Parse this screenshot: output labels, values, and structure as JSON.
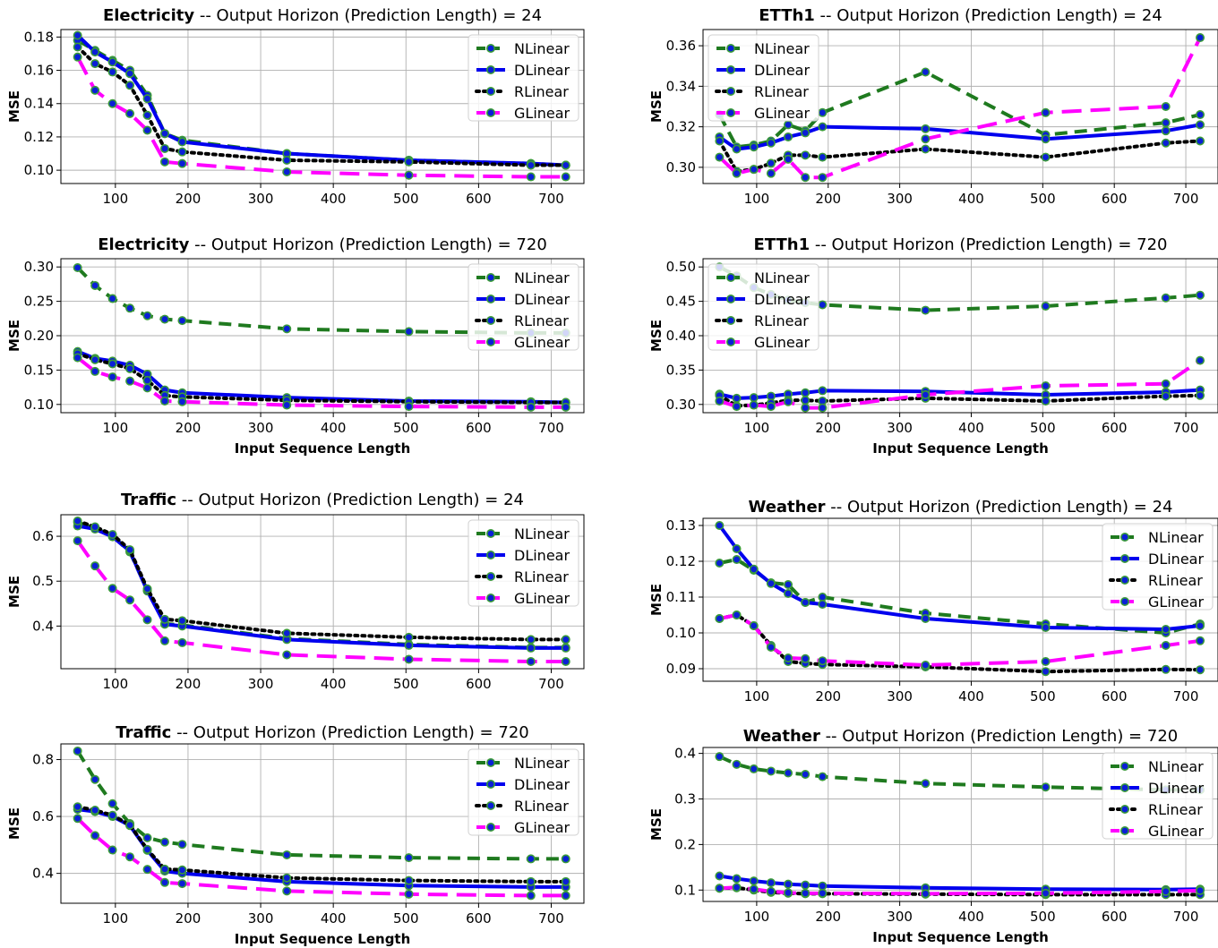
{
  "chart_data": [
    {
      "type": "line",
      "title_bold": "Electricity",
      "title_rest": " -- Output Horizon (Prediction Length) = 24",
      "xlabel": "",
      "ylabel": "MSE",
      "xlim": [
        25,
        745
      ],
      "ylim": [
        0.092,
        0.1845
      ],
      "xticks": [
        100,
        200,
        300,
        400,
        500,
        600,
        700
      ],
      "yticks": [
        0.1,
        0.12,
        0.14,
        0.16,
        0.18
      ],
      "ytick_labels": [
        "0.10",
        "0.12",
        "0.14",
        "0.16",
        "0.18"
      ],
      "grid": true,
      "legend_position": "top-right",
      "x": [
        48,
        72,
        96,
        120,
        144,
        168,
        192,
        336,
        504,
        672,
        720
      ],
      "series": [
        {
          "name": "NLinear",
          "values": [
            0.178,
            0.172,
            0.166,
            0.16,
            0.145,
            0.122,
            0.118,
            0.11,
            0.106,
            0.104,
            0.103
          ]
        },
        {
          "name": "DLinear",
          "values": [
            0.181,
            0.171,
            0.165,
            0.158,
            0.143,
            0.122,
            0.117,
            0.11,
            0.106,
            0.104,
            0.103
          ]
        },
        {
          "name": "RLinear",
          "values": [
            0.174,
            0.164,
            0.159,
            0.151,
            0.133,
            0.113,
            0.111,
            0.106,
            0.105,
            0.103,
            0.103
          ]
        },
        {
          "name": "GLinear",
          "values": [
            0.168,
            0.148,
            0.14,
            0.134,
            0.124,
            0.105,
            0.104,
            0.099,
            0.097,
            0.096,
            0.096
          ]
        }
      ]
    },
    {
      "type": "line",
      "title_bold": "ETTh1",
      "title_rest": " -- Output Horizon (Prediction Length) = 24",
      "xlabel": "",
      "ylabel": "MSE",
      "xlim": [
        25,
        745
      ],
      "ylim": [
        0.292,
        0.368
      ],
      "xticks": [
        100,
        200,
        300,
        400,
        500,
        600,
        700
      ],
      "yticks": [
        0.3,
        0.32,
        0.34,
        0.36
      ],
      "ytick_labels": [
        "0.30",
        "0.32",
        "0.34",
        "0.36"
      ],
      "grid": true,
      "legend_position": "top-left",
      "x": [
        48,
        72,
        96,
        120,
        144,
        168,
        192,
        336,
        504,
        672,
        720
      ],
      "series": [
        {
          "name": "NLinear",
          "values": [
            0.326,
            0.31,
            0.311,
            0.313,
            0.321,
            0.318,
            0.327,
            0.347,
            0.316,
            0.322,
            0.326
          ]
        },
        {
          "name": "DLinear",
          "values": [
            0.315,
            0.309,
            0.31,
            0.312,
            0.315,
            0.317,
            0.32,
            0.319,
            0.314,
            0.318,
            0.321
          ]
        },
        {
          "name": "RLinear",
          "values": [
            0.313,
            0.298,
            0.299,
            0.302,
            0.306,
            0.306,
            0.305,
            0.309,
            0.305,
            0.312,
            0.313
          ]
        },
        {
          "name": "GLinear",
          "values": [
            0.305,
            0.297,
            0.299,
            0.297,
            0.304,
            0.295,
            0.295,
            0.314,
            0.327,
            0.33,
            0.364
          ]
        }
      ]
    },
    {
      "type": "line",
      "title_bold": "Electricity",
      "title_rest": " -- Output Horizon (Prediction Length) = 720",
      "xlabel": "Input Sequence Length",
      "ylabel": "MSE",
      "xlim": [
        25,
        745
      ],
      "ylim": [
        0.088,
        0.312
      ],
      "xticks": [
        100,
        200,
        300,
        400,
        500,
        600,
        700
      ],
      "yticks": [
        0.1,
        0.15,
        0.2,
        0.25,
        0.3
      ],
      "ytick_labels": [
        "0.10",
        "0.15",
        "0.20",
        "0.25",
        "0.30"
      ],
      "grid": true,
      "legend_position": "top-right",
      "x": [
        48,
        72,
        96,
        120,
        144,
        168,
        192,
        336,
        504,
        672,
        720
      ],
      "series": [
        {
          "name": "NLinear",
          "values": [
            0.299,
            0.273,
            0.254,
            0.24,
            0.229,
            0.224,
            0.222,
            0.21,
            0.206,
            0.204,
            0.204
          ]
        },
        {
          "name": "DLinear",
          "values": [
            0.177,
            0.167,
            0.163,
            0.157,
            0.144,
            0.121,
            0.117,
            0.11,
            0.105,
            0.104,
            0.103
          ]
        },
        {
          "name": "RLinear",
          "values": [
            0.174,
            0.165,
            0.159,
            0.152,
            0.135,
            0.113,
            0.111,
            0.106,
            0.104,
            0.103,
            0.103
          ]
        },
        {
          "name": "GLinear",
          "values": [
            0.168,
            0.148,
            0.14,
            0.134,
            0.124,
            0.105,
            0.104,
            0.099,
            0.097,
            0.096,
            0.096
          ]
        }
      ]
    },
    {
      "type": "line",
      "title_bold": "ETTh1",
      "title_rest": " -- Output Horizon (Prediction Length) = 720",
      "xlabel": "Input Sequence Length",
      "ylabel": "MSE",
      "xlim": [
        25,
        745
      ],
      "ylim": [
        0.288,
        0.512
      ],
      "xticks": [
        100,
        200,
        300,
        400,
        500,
        600,
        700
      ],
      "yticks": [
        0.3,
        0.35,
        0.4,
        0.45,
        0.5
      ],
      "ytick_labels": [
        "0.30",
        "0.35",
        "0.40",
        "0.45",
        "0.50"
      ],
      "grid": true,
      "legend_position": "top-left",
      "x": [
        48,
        72,
        96,
        120,
        144,
        168,
        192,
        336,
        504,
        672,
        720
      ],
      "series": [
        {
          "name": "NLinear",
          "values": [
            0.5,
            0.487,
            0.47,
            0.46,
            0.452,
            0.448,
            0.445,
            0.437,
            0.443,
            0.455,
            0.459
          ]
        },
        {
          "name": "DLinear",
          "values": [
            0.315,
            0.309,
            0.31,
            0.312,
            0.315,
            0.317,
            0.32,
            0.319,
            0.314,
            0.318,
            0.321
          ]
        },
        {
          "name": "RLinear",
          "values": [
            0.313,
            0.298,
            0.299,
            0.302,
            0.306,
            0.306,
            0.305,
            0.309,
            0.305,
            0.312,
            0.313
          ]
        },
        {
          "name": "GLinear",
          "values": [
            0.305,
            0.297,
            0.299,
            0.297,
            0.304,
            0.295,
            0.295,
            0.314,
            0.327,
            0.33,
            0.364
          ]
        }
      ]
    },
    {
      "type": "line",
      "title_bold": "Traffic",
      "title_rest": " -- Output Horizon (Prediction Length) = 24",
      "xlabel": "",
      "ylabel": "MSE",
      "xlim": [
        25,
        745
      ],
      "ylim": [
        0.305,
        0.648
      ],
      "xticks": [
        100,
        200,
        300,
        400,
        500,
        600,
        700
      ],
      "yticks": [
        0.4,
        0.5,
        0.6
      ],
      "ytick_labels": [
        "0.4",
        "0.5",
        "0.6"
      ],
      "grid": true,
      "legend_position": "top-right",
      "x": [
        48,
        72,
        96,
        120,
        144,
        168,
        192,
        336,
        504,
        672,
        720
      ],
      "series": [
        {
          "name": "NLinear",
          "values": [
            0.631,
            0.618,
            0.601,
            0.565,
            0.48,
            0.405,
            0.402,
            0.372,
            0.359,
            0.352,
            0.352
          ]
        },
        {
          "name": "DLinear",
          "values": [
            0.623,
            0.616,
            0.599,
            0.567,
            0.478,
            0.404,
            0.4,
            0.37,
            0.357,
            0.351,
            0.351
          ]
        },
        {
          "name": "RLinear",
          "values": [
            0.634,
            0.621,
            0.604,
            0.57,
            0.483,
            0.415,
            0.412,
            0.384,
            0.375,
            0.37,
            0.37
          ]
        },
        {
          "name": "GLinear",
          "values": [
            0.59,
            0.534,
            0.484,
            0.458,
            0.414,
            0.367,
            0.363,
            0.336,
            0.326,
            0.321,
            0.321
          ]
        }
      ]
    },
    {
      "type": "line",
      "title_bold": "Weather",
      "title_rest": " -- Output Horizon (Prediction Length) = 24",
      "xlabel": "",
      "ylabel": "MSE",
      "xlim": [
        25,
        745
      ],
      "ylim": [
        0.0865,
        0.132
      ],
      "xticks": [
        100,
        200,
        300,
        400,
        500,
        600,
        700
      ],
      "yticks": [
        0.09,
        0.1,
        0.11,
        0.12,
        0.13
      ],
      "ytick_labels": [
        "0.09",
        "0.10",
        "0.11",
        "0.12",
        "0.13"
      ],
      "grid": true,
      "legend_position": "top-right",
      "x": [
        48,
        72,
        96,
        120,
        144,
        168,
        192,
        336,
        504,
        672,
        720
      ],
      "series": [
        {
          "name": "NLinear",
          "values": [
            0.1195,
            0.1205,
            0.1175,
            0.114,
            0.1135,
            0.1085,
            0.11,
            0.1055,
            0.1025,
            0.1,
            0.1025
          ]
        },
        {
          "name": "DLinear",
          "values": [
            0.13,
            0.1235,
            0.1178,
            0.1138,
            0.111,
            0.1085,
            0.108,
            0.104,
            0.1015,
            0.101,
            0.102
          ]
        },
        {
          "name": "RLinear",
          "values": [
            0.104,
            0.105,
            0.102,
            0.0965,
            0.092,
            0.0915,
            0.0912,
            0.0905,
            0.0892,
            0.0898,
            0.0897
          ]
        },
        {
          "name": "GLinear",
          "values": [
            0.104,
            0.105,
            0.102,
            0.096,
            0.093,
            0.0928,
            0.0922,
            0.091,
            0.092,
            0.0965,
            0.0978
          ]
        }
      ]
    },
    {
      "type": "line",
      "title_bold": "Traffic",
      "title_rest": " -- Output Horizon (Prediction Length) = 720",
      "xlabel": "Input Sequence Length",
      "ylabel": "MSE",
      "xlim": [
        25,
        745
      ],
      "ylim": [
        0.295,
        0.855
      ],
      "xticks": [
        100,
        200,
        300,
        400,
        500,
        600,
        700
      ],
      "yticks": [
        0.4,
        0.6,
        0.8
      ],
      "ytick_labels": [
        "0.4",
        "0.6",
        "0.8"
      ],
      "grid": true,
      "legend_position": "top-right",
      "x": [
        48,
        72,
        96,
        120,
        144,
        168,
        192,
        336,
        504,
        672,
        720
      ],
      "series": [
        {
          "name": "NLinear",
          "values": [
            0.83,
            0.73,
            0.645,
            0.575,
            0.525,
            0.51,
            0.502,
            0.465,
            0.455,
            0.451,
            0.451
          ]
        },
        {
          "name": "DLinear",
          "values": [
            0.625,
            0.617,
            0.6,
            0.568,
            0.481,
            0.408,
            0.4,
            0.371,
            0.357,
            0.352,
            0.352
          ]
        },
        {
          "name": "RLinear",
          "values": [
            0.634,
            0.622,
            0.604,
            0.57,
            0.484,
            0.415,
            0.412,
            0.384,
            0.375,
            0.371,
            0.371
          ]
        },
        {
          "name": "GLinear",
          "values": [
            0.593,
            0.533,
            0.482,
            0.458,
            0.414,
            0.368,
            0.364,
            0.338,
            0.327,
            0.322,
            0.322
          ]
        }
      ]
    },
    {
      "type": "line",
      "title_bold": "Weather",
      "title_rest": " -- Output Horizon (Prediction Length) = 720",
      "xlabel": "Input Sequence Length",
      "ylabel": "MSE",
      "xlim": [
        25,
        745
      ],
      "ylim": [
        0.075,
        0.413
      ],
      "xticks": [
        100,
        200,
        300,
        400,
        500,
        600,
        700
      ],
      "yticks": [
        0.1,
        0.2,
        0.3,
        0.4
      ],
      "ytick_labels": [
        "0.1",
        "0.2",
        "0.3",
        "0.4"
      ],
      "grid": true,
      "legend_position": "top-right",
      "x": [
        48,
        72,
        96,
        120,
        144,
        168,
        192,
        336,
        504,
        672,
        720
      ],
      "series": [
        {
          "name": "NLinear",
          "values": [
            0.393,
            0.376,
            0.366,
            0.361,
            0.357,
            0.354,
            0.349,
            0.334,
            0.326,
            0.32,
            0.32
          ]
        },
        {
          "name": "DLinear",
          "values": [
            0.131,
            0.125,
            0.12,
            0.116,
            0.113,
            0.111,
            0.109,
            0.105,
            0.102,
            0.101,
            0.102
          ]
        },
        {
          "name": "RLinear",
          "values": [
            0.104,
            0.105,
            0.1,
            0.095,
            0.093,
            0.092,
            0.092,
            0.091,
            0.09,
            0.09,
            0.09
          ]
        },
        {
          "name": "GLinear",
          "values": [
            0.104,
            0.106,
            0.102,
            0.097,
            0.094,
            0.093,
            0.093,
            0.092,
            0.093,
            0.097,
            0.099
          ]
        }
      ]
    }
  ],
  "series_styles": [
    {
      "name": "NLinear",
      "color": "#1f7a1f",
      "dash": "dashed"
    },
    {
      "name": "DLinear",
      "color": "#0000ee",
      "dash": "solid"
    },
    {
      "name": "RLinear",
      "color": "#000000",
      "dash": "dotted"
    },
    {
      "name": "GLinear",
      "color": "#ff00ff",
      "dash": "long-dashed"
    }
  ],
  "marker_colors": {
    "face": "#0a1fd6",
    "edge": "#3a9a3a"
  }
}
